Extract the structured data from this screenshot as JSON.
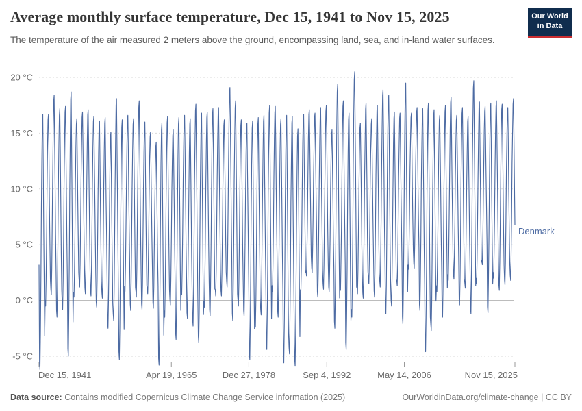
{
  "header": {
    "title": "Average monthly surface temperature, Dec 15, 1941 to Nov 15, 2025",
    "subtitle": "The temperature of the air measured 2 meters above the ground, encompassing land, sea, and in-land water surfaces.",
    "logo": {
      "line1": "Our World",
      "line2": "in Data",
      "bg_color": "#102d4e",
      "accent_color": "#cb2d30"
    }
  },
  "footer": {
    "source_label": "Data source:",
    "source_text": " Contains modified Copernicus Climate Change Service information (2025)",
    "credit": "OurWorldinData.org/climate-change | CC BY"
  },
  "chart_data": {
    "type": "line",
    "title": "Average monthly surface temperature, Dec 15, 1941 to Nov 15, 2025",
    "series_name": "Denmark",
    "line_color": "#4d6ba3",
    "unit": "°C",
    "ylim": [
      -5,
      20
    ],
    "grid": "dashed horizontal, solid zero line",
    "legend_position": "right of last point",
    "y_ticks": [
      {
        "label": "20 °C",
        "value": 20
      },
      {
        "label": "15 °C",
        "value": 15
      },
      {
        "label": "10 °C",
        "value": 10
      },
      {
        "label": "5 °C",
        "value": 5
      },
      {
        "label": "0 °C",
        "value": 0
      },
      {
        "label": "-5 °C",
        "value": -5
      }
    ],
    "x_ticks": [
      {
        "label": "Dec 15, 1941",
        "month_index": 0,
        "align": "start"
      },
      {
        "label": "Apr 19, 1965",
        "month_index": 280,
        "align": "middle"
      },
      {
        "label": "Dec 27, 1978",
        "month_index": 444,
        "align": "middle"
      },
      {
        "label": "Sep 4, 1992",
        "month_index": 609,
        "align": "middle"
      },
      {
        "label": "May 14, 2006",
        "month_index": 773,
        "align": "middle"
      },
      {
        "label": "Nov 15, 2025",
        "month_index": 1007,
        "align": "end"
      }
    ],
    "x_start": "Dec 1941",
    "x_end": "Nov 2025",
    "total_months": 1008,
    "first_value_dec_1941": 3.2,
    "seasonal_profile_jan_to_dec": [
      0.03,
      0.0,
      0.14,
      0.36,
      0.62,
      0.82,
      0.97,
      1.0,
      0.79,
      0.55,
      0.32,
      0.13
    ],
    "years": [
      1942,
      1943,
      1944,
      1945,
      1946,
      1947,
      1948,
      1949,
      1950,
      1951,
      1952,
      1953,
      1954,
      1955,
      1956,
      1957,
      1958,
      1959,
      1960,
      1961,
      1962,
      1963,
      1964,
      1965,
      1966,
      1967,
      1968,
      1969,
      1970,
      1971,
      1972,
      1973,
      1974,
      1975,
      1976,
      1977,
      1978,
      1979,
      1980,
      1981,
      1982,
      1983,
      1984,
      1985,
      1986,
      1987,
      1988,
      1989,
      1990,
      1991,
      1992,
      1993,
      1994,
      1995,
      1996,
      1997,
      1998,
      1999,
      2000,
      2001,
      2002,
      2003,
      2004,
      2005,
      2006,
      2007,
      2008,
      2009,
      2010,
      2011,
      2012,
      2013,
      2014,
      2015,
      2016,
      2017,
      2018,
      2019,
      2020,
      2021,
      2022,
      2023,
      2024,
      2025
    ],
    "summer_max": [
      16.7,
      16.7,
      18.4,
      17.2,
      17.4,
      18.7,
      16.3,
      16.9,
      17.1,
      16.5,
      16.1,
      16.4,
      15.1,
      18.1,
      16.2,
      16.6,
      16.3,
      17.9,
      16.0,
      15.1,
      14.2,
      15.9,
      16.5,
      15.3,
      16.4,
      16.6,
      16.3,
      17.6,
      16.8,
      16.9,
      17.2,
      17.3,
      16.2,
      19.1,
      17.9,
      16.2,
      15.9,
      16.1,
      16.4,
      16.6,
      17.5,
      17.4,
      16.3,
      16.6,
      16.5,
      15.4,
      16.7,
      17.1,
      16.8,
      17.3,
      17.5,
      15.3,
      19.4,
      17.9,
      16.8,
      20.5,
      15.9,
      17.7,
      16.3,
      17.5,
      18.9,
      18.4,
      16.9,
      16.8,
      19.5,
      16.8,
      17.3,
      17.2,
      17.7,
      17.1,
      16.6,
      17.5,
      18.2,
      16.6,
      17.3,
      16.5,
      19.7,
      17.8,
      17.4,
      17.7,
      17.9,
      17.6,
      17.3,
      18.1
    ],
    "winter_min": [
      -6.2,
      -0.5,
      0.5,
      -1.5,
      -0.8,
      -5.0,
      0.3,
      1.2,
      0.6,
      0.4,
      -0.6,
      0.2,
      -2.5,
      -1.8,
      -5.3,
      0.8,
      -0.9,
      0.3,
      -0.8,
      0.6,
      -0.7,
      -5.8,
      -1.5,
      -0.4,
      -3.5,
      0.5,
      -1.6,
      -2.3,
      -3.8,
      -0.6,
      -1.4,
      0.4,
      0.4,
      1.2,
      -1.8,
      -0.5,
      -1.4,
      -5.3,
      -2.4,
      -1.3,
      -4.4,
      0.8,
      -1.5,
      -5.6,
      -4.8,
      -5.9,
      0.5,
      2.2,
      2.5,
      0.3,
      1.0,
      0.8,
      -2.5,
      0.9,
      -4.4,
      -1.5,
      0.6,
      0.2,
      1.5,
      0.3,
      1.2,
      -1.2,
      -0.5,
      1.3,
      -2.1,
      2.8,
      2.9,
      -0.9,
      -4.6,
      -2.7,
      0.8,
      -1.5,
      1.8,
      1.9,
      -0.4,
      1.1,
      -1.2,
      1.5,
      3.2,
      -1.1,
      2.0,
      0.9,
      1.4,
      1.8
    ],
    "note": "monthly value = winter_min + seasonal_profile * (summer_max - winter_min), Dec 1941 prepended"
  },
  "layout_colors": {
    "grid_dashed": "#d9d9d9",
    "zero_line": "#b3b3b3",
    "tick_mark": "#9a9a9a",
    "axis_text": "#6b6b6b"
  }
}
